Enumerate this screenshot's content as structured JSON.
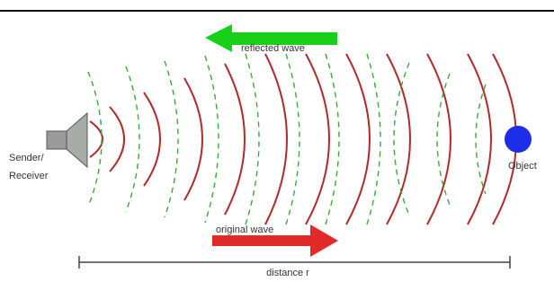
{
  "diagram": {
    "reflected_label": "reflected wave",
    "original_label": "original wave",
    "sender_label": [
      "Sender/",
      "Receiver"
    ],
    "object_label": "Object",
    "distance_label": "distance r"
  }
}
